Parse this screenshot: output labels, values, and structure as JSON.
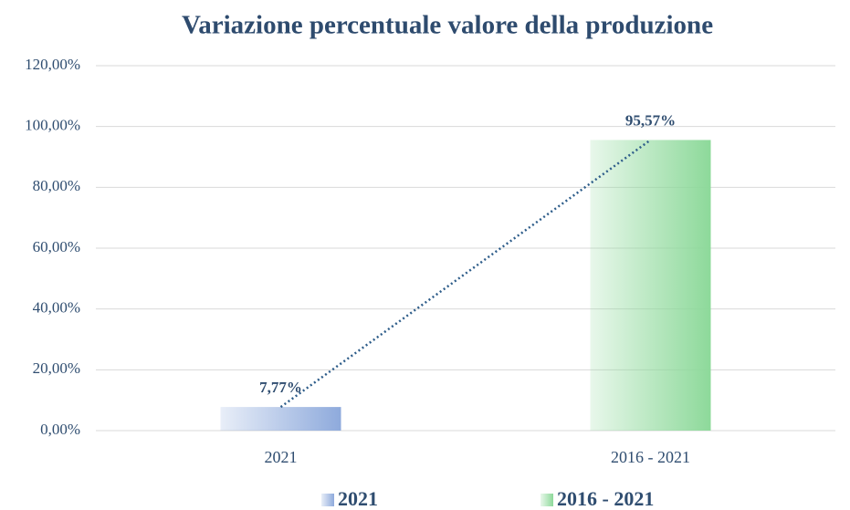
{
  "chart_data": {
    "type": "bar",
    "title": "Variazione percentuale valore della produzione",
    "categories": [
      "2021",
      "2016 - 2021"
    ],
    "series": [
      {
        "name": "2021",
        "color": "#8eaadc",
        "values": [
          7.77,
          null
        ],
        "value_labels": [
          "7,77%",
          null
        ]
      },
      {
        "name": "2016 - 2021",
        "color": "#8dd99a",
        "values": [
          null,
          95.57
        ],
        "value_labels": [
          null,
          "95,57%"
        ]
      }
    ],
    "ylim": [
      0,
      120
    ],
    "yticks": [
      {
        "value": 0,
        "label": "0,00%"
      },
      {
        "value": 20,
        "label": "20,00%"
      },
      {
        "value": 40,
        "label": "40,00%"
      },
      {
        "value": 60,
        "label": "60,00%"
      },
      {
        "value": 80,
        "label": "80,00%"
      },
      {
        "value": 100,
        "label": "100,00%"
      },
      {
        "value": 120,
        "label": "120,00%"
      }
    ],
    "grid": true,
    "trendline": true,
    "legend": "bottom"
  }
}
